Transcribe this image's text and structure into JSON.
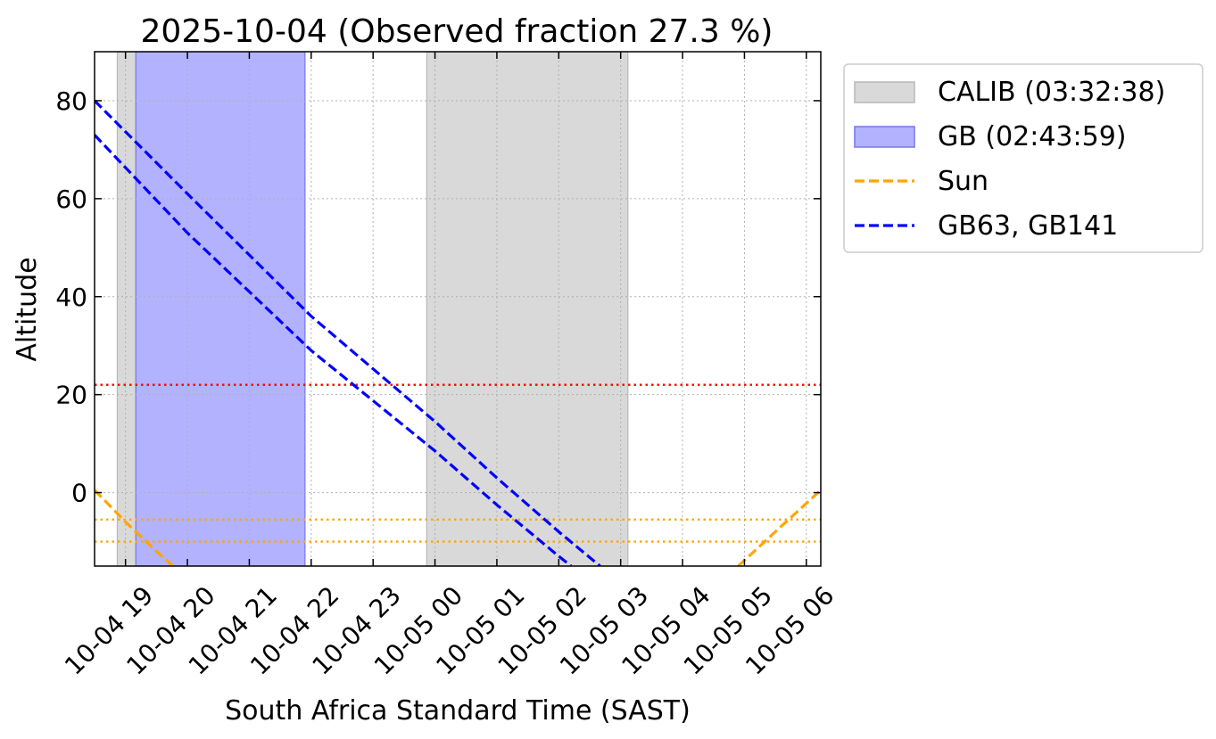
{
  "chart_data": {
    "type": "line",
    "title": "2025-10-04 (Observed fraction 27.3 %)",
    "xlabel": "South Africa Standard Time (SAST)",
    "ylabel": "Altitude",
    "x_range": [
      "2025-10-04 18:30",
      "2025-10-05 06:14"
    ],
    "ylim": [
      -15,
      90
    ],
    "x_ticks": [
      {
        "t": "2025-10-04 19:00",
        "label": "10-04 19"
      },
      {
        "t": "2025-10-04 20:00",
        "label": "10-04 20"
      },
      {
        "t": "2025-10-04 21:00",
        "label": "10-04 21"
      },
      {
        "t": "2025-10-04 22:00",
        "label": "10-04 22"
      },
      {
        "t": "2025-10-04 23:00",
        "label": "10-04 23"
      },
      {
        "t": "2025-10-05 00:00",
        "label": "10-05 00"
      },
      {
        "t": "2025-10-05 01:00",
        "label": "10-05 01"
      },
      {
        "t": "2025-10-05 02:00",
        "label": "10-05 02"
      },
      {
        "t": "2025-10-05 03:00",
        "label": "10-05 03"
      },
      {
        "t": "2025-10-05 04:00",
        "label": "10-05 04"
      },
      {
        "t": "2025-10-05 05:00",
        "label": "10-05 05"
      },
      {
        "t": "2025-10-05 06:00",
        "label": "10-05 06"
      }
    ],
    "y_ticks": [
      0,
      20,
      40,
      60,
      80
    ],
    "grid": true,
    "spans": [
      {
        "name": "CALIB (03:32:38)",
        "color": "#d9d9d9",
        "edge": "#b8b8b8",
        "intervals": [
          [
            "2025-10-04 18:52",
            "2025-10-04 19:10"
          ],
          [
            "2025-10-04 23:52",
            "2025-10-05 03:07"
          ]
        ]
      },
      {
        "name": "GB (02:43:59)",
        "color": "#b2b2ff",
        "edge": "#7777ee",
        "intervals": [
          [
            "2025-10-04 19:10",
            "2025-10-04 21:54"
          ]
        ]
      }
    ],
    "series": [
      {
        "name": "Sun",
        "color": "#ffa500",
        "dash": true,
        "segments": [
          [
            [
              "2025-10-04 18:30",
              0.5
            ],
            [
              "2025-10-04 19:00",
              -6.0
            ],
            [
              "2025-10-04 19:30",
              -12.0
            ],
            [
              "2025-10-04 19:46",
              -15.0
            ]
          ],
          [
            [
              "2025-10-05 04:54",
              -15.0
            ],
            [
              "2025-10-05 05:30",
              -8.0
            ],
            [
              "2025-10-05 06:14",
              0.5
            ]
          ]
        ]
      },
      {
        "name": "GB63",
        "color": "#0000ff",
        "dash": true,
        "segments": [
          [
            [
              "2025-10-04 18:30",
              80.0
            ],
            [
              "2025-10-04 20:00",
              61.0
            ],
            [
              "2025-10-04 22:00",
              36.0
            ],
            [
              "2025-10-05 00:00",
              14.5
            ],
            [
              "2025-10-05 01:00",
              3.0
            ],
            [
              "2025-10-05 02:00",
              -8.0
            ],
            [
              "2025-10-05 02:40",
              -15.0
            ]
          ]
        ]
      },
      {
        "name": "GB141",
        "color": "#0000ff",
        "dash": true,
        "segments": [
          [
            [
              "2025-10-04 18:30",
              73.0
            ],
            [
              "2025-10-04 20:00",
              53.0
            ],
            [
              "2025-10-04 22:00",
              29.0
            ],
            [
              "2025-10-05 00:00",
              8.5
            ],
            [
              "2025-10-05 01:00",
              -2.5
            ],
            [
              "2025-10-05 02:00",
              -13.0
            ],
            [
              "2025-10-05 02:12",
              -15.0
            ]
          ]
        ]
      }
    ],
    "hlines": [
      {
        "y": 22,
        "color": "#ff0000"
      },
      {
        "y": -5.5,
        "color": "#ffa500"
      },
      {
        "y": -10,
        "color": "#ffa500"
      }
    ],
    "legend": {
      "position": "outside-right",
      "items": [
        {
          "kind": "patch",
          "label": "CALIB (03:32:38)",
          "color": "#d9d9d9",
          "edge": "#b8b8b8"
        },
        {
          "kind": "patch",
          "label": "GB (02:43:59)",
          "color": "#b2b2ff",
          "edge": "#7777ee"
        },
        {
          "kind": "line",
          "label": "Sun",
          "color": "#ffa500"
        },
        {
          "kind": "line",
          "label": "GB63, GB141",
          "color": "#0000ff"
        }
      ]
    }
  }
}
